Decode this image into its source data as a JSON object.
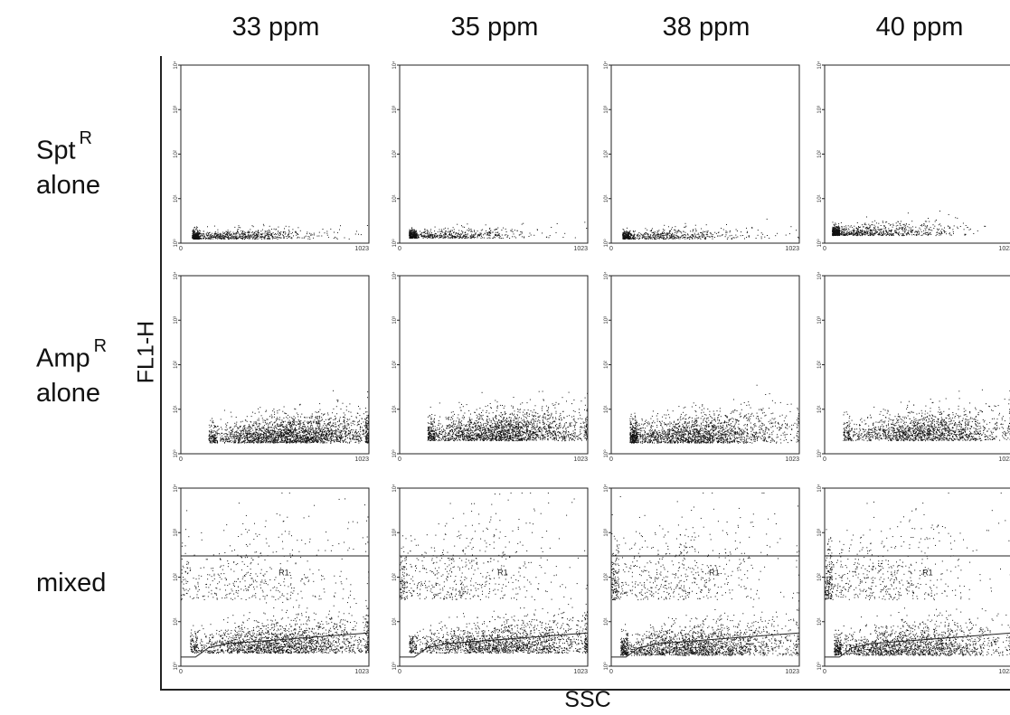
{
  "figure": {
    "columns": [
      "33 ppm",
      "35 ppm",
      "38 ppm",
      "40 ppm"
    ],
    "rows": [
      {
        "main": "Spt",
        "sup": "R",
        "second": "alone"
      },
      {
        "main": "Amp",
        "sup": "R",
        "second": "alone"
      },
      {
        "main": "mixed",
        "sup": "",
        "second": ""
      }
    ],
    "xlabel": "SSC",
    "ylabel": "FL1-H",
    "panel_x_ticks": [
      "0",
      "1023"
    ],
    "panel_y_ticks": [
      "10⁰",
      "10¹",
      "10²",
      "10³",
      "10⁴"
    ],
    "gate_label": "R1",
    "colors": {
      "points": "#111111",
      "frame": "#222222"
    }
  },
  "chart_data": {
    "type": "scatter",
    "title": "",
    "xlabel": "SSC",
    "ylabel": "FL1-H",
    "xlim": [
      0,
      1023
    ],
    "ylim": [
      1,
      10000
    ],
    "y_scale": "log",
    "grid": false,
    "legend": "none",
    "columns": [
      "33 ppm",
      "35 ppm",
      "38 ppm",
      "40 ppm"
    ],
    "rows": [
      "Spt R alone",
      "Amp R alone",
      "mixed"
    ],
    "panels": [
      {
        "row": 0,
        "col": 0,
        "clusters": [
          {
            "x_range": [
              60,
              1023
            ],
            "x_center": 200,
            "log_y_center": 0.1,
            "log_y_spread": 0.08,
            "n": 900
          }
        ]
      },
      {
        "row": 0,
        "col": 1,
        "clusters": [
          {
            "x_range": [
              50,
              1023
            ],
            "x_center": 170,
            "log_y_center": 0.12,
            "log_y_spread": 0.08,
            "n": 750
          }
        ]
      },
      {
        "row": 0,
        "col": 2,
        "clusters": [
          {
            "x_range": [
              60,
              1023
            ],
            "x_center": 200,
            "log_y_center": 0.1,
            "log_y_spread": 0.08,
            "n": 700
          }
        ]
      },
      {
        "row": 0,
        "col": 3,
        "clusters": [
          {
            "x_range": [
              40,
              1023
            ],
            "x_center": 170,
            "log_y_center": 0.18,
            "log_y_spread": 0.1,
            "n": 950
          }
        ]
      },
      {
        "row": 1,
        "col": 0,
        "clusters": [
          {
            "x_range": [
              150,
              1023
            ],
            "x_center": 600,
            "log_y_center": 0.25,
            "log_y_spread": 0.18,
            "n": 2400
          }
        ]
      },
      {
        "row": 1,
        "col": 1,
        "clusters": [
          {
            "x_range": [
              150,
              1023
            ],
            "x_center": 550,
            "log_y_center": 0.3,
            "log_y_spread": 0.2,
            "n": 2200
          }
        ]
      },
      {
        "row": 1,
        "col": 2,
        "clusters": [
          {
            "x_range": [
              100,
              1023
            ],
            "x_center": 450,
            "log_y_center": 0.25,
            "log_y_spread": 0.2,
            "n": 2000
          }
        ]
      },
      {
        "row": 1,
        "col": 3,
        "clusters": [
          {
            "x_range": [
              100,
              1023
            ],
            "x_center": 550,
            "log_y_center": 0.3,
            "log_y_spread": 0.2,
            "n": 1700
          }
        ]
      },
      {
        "row": 2,
        "col": 0,
        "gate_top_y": 300,
        "clusters": [
          {
            "x_range": [
              50,
              1023
            ],
            "x_center": 550,
            "log_y_center": 0.3,
            "log_y_spread": 0.22,
            "n": 2000
          },
          {
            "x_range": [
              0,
              1023
            ],
            "x_center": 400,
            "log_y_center": 1.5,
            "log_y_spread": 0.6,
            "n": 450
          }
        ]
      },
      {
        "row": 2,
        "col": 1,
        "gate_top_y": 300,
        "clusters": [
          {
            "x_range": [
              50,
              1023
            ],
            "x_center": 550,
            "log_y_center": 0.3,
            "log_y_spread": 0.22,
            "n": 1900
          },
          {
            "x_range": [
              0,
              1023
            ],
            "x_center": 300,
            "log_y_center": 1.5,
            "log_y_spread": 0.6,
            "n": 600
          }
        ]
      },
      {
        "row": 2,
        "col": 2,
        "gate_top_y": 300,
        "clusters": [
          {
            "x_range": [
              50,
              1023
            ],
            "x_center": 450,
            "log_y_center": 0.25,
            "log_y_spread": 0.22,
            "n": 2000
          },
          {
            "x_range": [
              0,
              1023
            ],
            "x_center": 300,
            "log_y_center": 1.5,
            "log_y_spread": 0.6,
            "n": 650
          }
        ]
      },
      {
        "row": 2,
        "col": 3,
        "gate_top_y": 300,
        "clusters": [
          {
            "x_range": [
              50,
              1023
            ],
            "x_center": 450,
            "log_y_center": 0.25,
            "log_y_spread": 0.22,
            "n": 1800
          },
          {
            "x_range": [
              0,
              1023
            ],
            "x_center": 250,
            "log_y_center": 1.5,
            "log_y_spread": 0.6,
            "n": 650
          }
        ]
      }
    ],
    "gate_R1_lower_boundary": [
      [
        0,
        1.6
      ],
      [
        80,
        1.6
      ],
      [
        150,
        2.6
      ],
      [
        250,
        3.2
      ],
      [
        1023,
        5.6
      ]
    ]
  }
}
